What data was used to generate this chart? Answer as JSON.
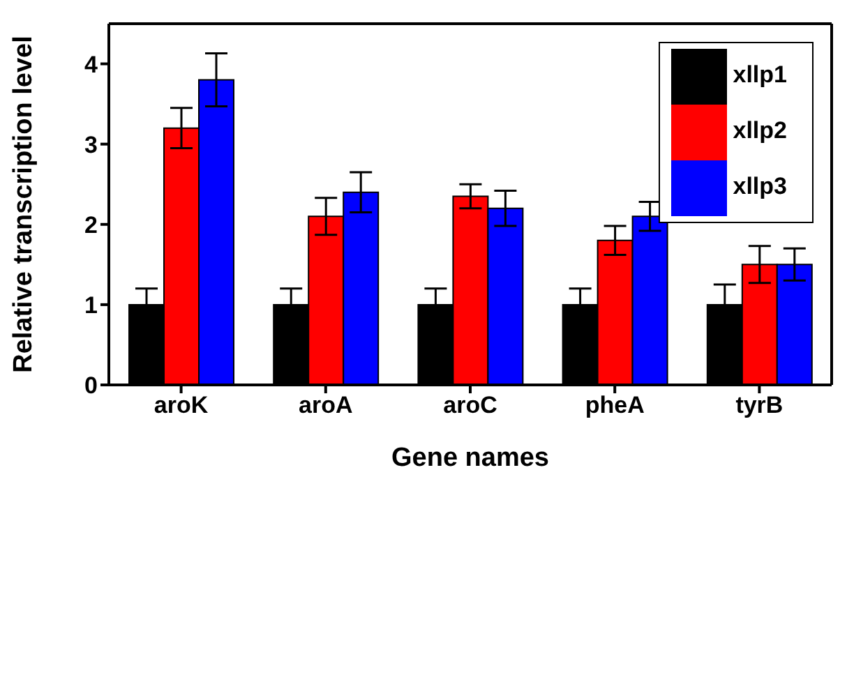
{
  "chart_data": {
    "type": "bar",
    "xlabel": "Gene names",
    "ylabel": "Relative transcription level",
    "categories": [
      "aroK",
      "aroA",
      "aroC",
      "pheA",
      "tyrB"
    ],
    "series": [
      {
        "name": "xllp1",
        "color": "#000000",
        "values": [
          1,
          1,
          1,
          1,
          1
        ],
        "errors": [
          0.2,
          0.2,
          0.2,
          0.2,
          0.25
        ]
      },
      {
        "name": "xllp2",
        "color": "#ff0000",
        "values": [
          3.2,
          2.1,
          2.35,
          1.8,
          1.5
        ],
        "errors": [
          0.25,
          0.23,
          0.15,
          0.18,
          0.23
        ]
      },
      {
        "name": "xllp3",
        "color": "#0000ff",
        "values": [
          3.8,
          2.4,
          2.2,
          2.1,
          1.5
        ],
        "errors": [
          0.33,
          0.25,
          0.22,
          0.18,
          0.2
        ]
      }
    ],
    "ylim": [
      0,
      4.5
    ],
    "yticks": [
      0,
      1,
      2,
      3,
      4
    ],
    "legend": "top right"
  }
}
